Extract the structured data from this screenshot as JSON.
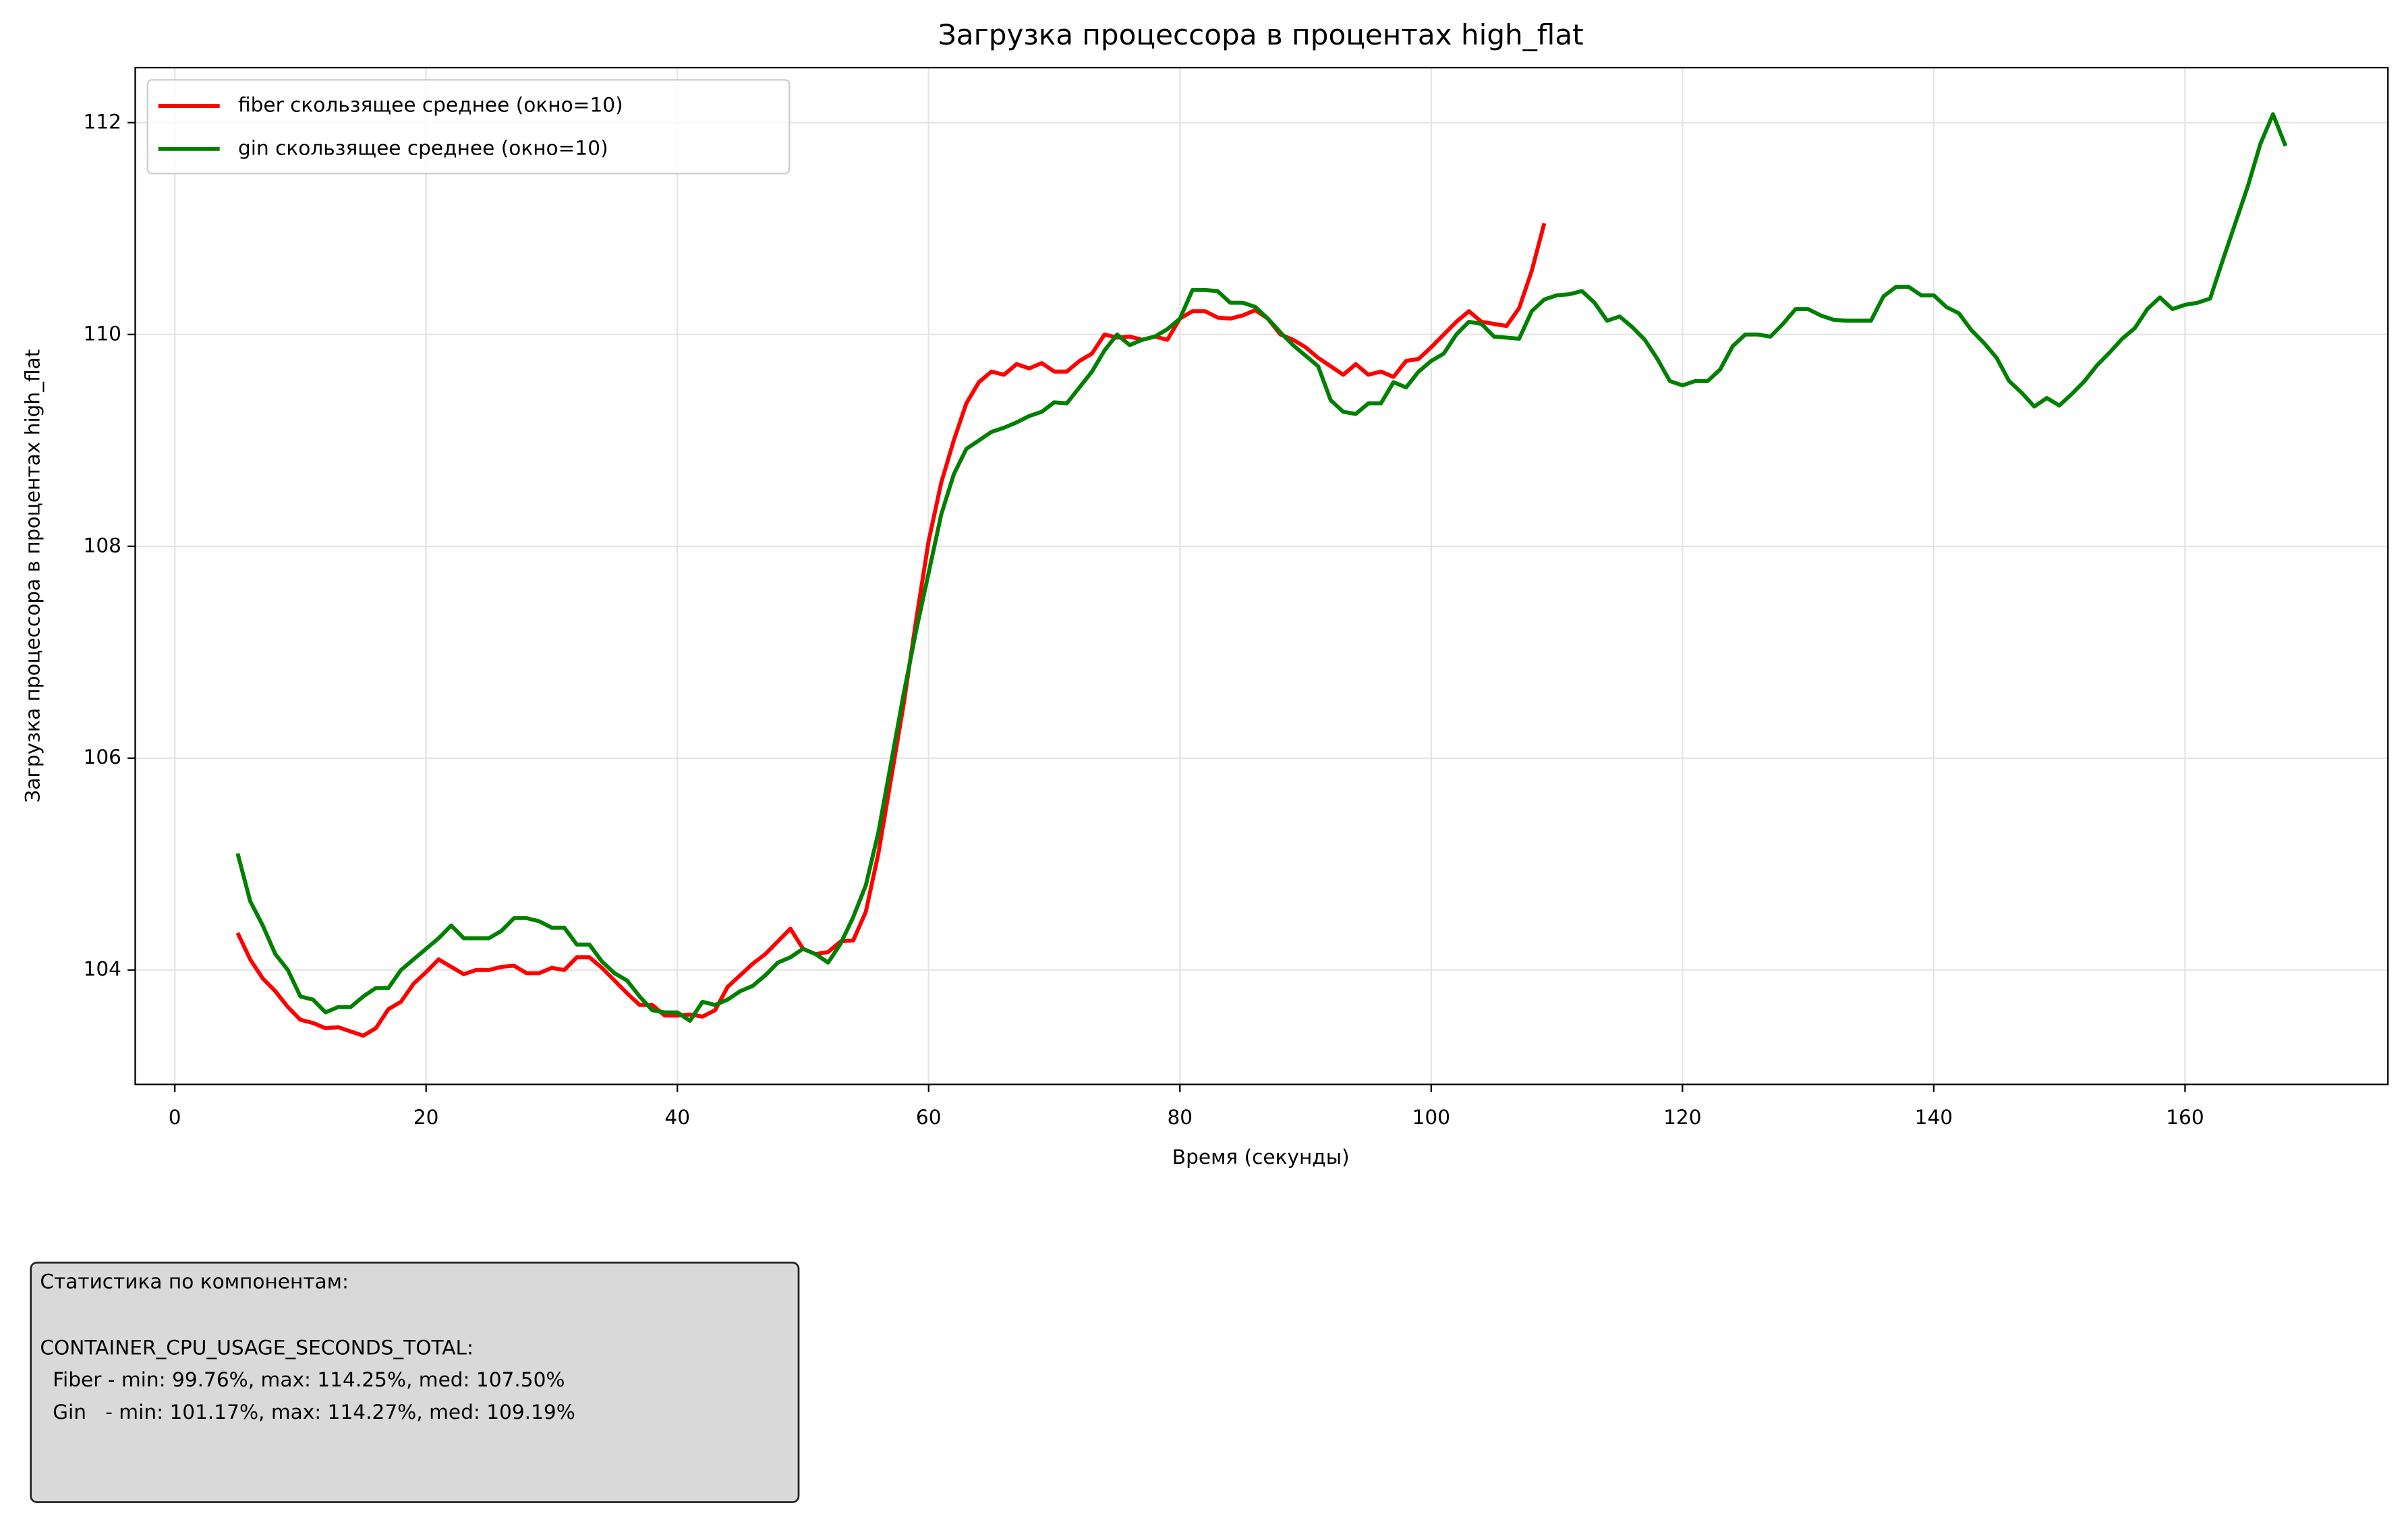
{
  "chart_data": {
    "type": "line",
    "title": "Загрузка процессора в процентах high_flat",
    "x_label": "Время (секунды)",
    "y_label": "Загрузка процессора в процентах high_flat",
    "xlim": [
      -3.15,
      176.15
    ],
    "ylim": [
      102.92,
      112.52
    ],
    "xticks": [
      0,
      20,
      40,
      60,
      80,
      100,
      120,
      140,
      160
    ],
    "yticks": [
      104,
      106,
      108,
      110,
      112
    ],
    "grid": true,
    "legend": "upper left",
    "series": [
      {
        "name": "fiber скользящее среднее (окно=10)",
        "color": "#ff0000",
        "x": [
          5,
          6,
          7,
          8,
          9,
          10,
          11,
          12,
          13,
          14,
          15,
          16,
          17,
          18,
          19,
          20,
          21,
          22,
          23,
          24,
          25,
          26,
          27,
          28,
          29,
          30,
          31,
          32,
          33,
          34,
          35,
          36,
          37,
          38,
          39,
          40,
          41,
          42,
          43,
          44,
          45,
          46,
          47,
          48,
          49,
          50,
          51,
          52,
          53,
          54,
          55,
          56,
          57,
          58,
          59,
          60,
          61,
          62,
          63,
          64,
          65,
          66,
          67,
          68,
          69,
          70,
          71,
          72,
          73,
          74,
          75,
          76,
          77,
          78,
          79,
          80,
          81,
          82,
          83,
          84,
          85,
          86,
          87,
          88,
          89,
          90,
          91,
          92,
          93,
          94,
          95,
          96,
          97,
          98,
          99,
          100,
          101,
          102,
          103,
          104,
          105,
          106,
          107,
          108,
          109
        ],
        "values": [
          104.35,
          104.1,
          103.92,
          103.8,
          103.65,
          103.53,
          103.5,
          103.45,
          103.46,
          103.42,
          103.38,
          103.45,
          103.63,
          103.7,
          103.87,
          103.98,
          104.1,
          104.03,
          103.96,
          104.0,
          104.0,
          104.03,
          104.04,
          103.97,
          103.97,
          104.02,
          104.0,
          104.12,
          104.12,
          104.02,
          103.9,
          103.78,
          103.67,
          103.67,
          103.57,
          103.57,
          103.58,
          103.56,
          103.62,
          103.84,
          103.95,
          104.06,
          104.15,
          104.27,
          104.39,
          104.2,
          104.15,
          104.17,
          104.27,
          104.28,
          104.55,
          105.1,
          105.8,
          106.5,
          107.3,
          108.05,
          108.6,
          109.0,
          109.35,
          109.55,
          109.65,
          109.62,
          109.72,
          109.68,
          109.73,
          109.65,
          109.65,
          109.75,
          109.82,
          110.0,
          109.97,
          109.98,
          109.95,
          109.98,
          109.95,
          110.15,
          110.22,
          110.22,
          110.16,
          110.15,
          110.18,
          110.23,
          110.15,
          110.0,
          109.95,
          109.88,
          109.78,
          109.7,
          109.62,
          109.72,
          109.62,
          109.65,
          109.6,
          109.75,
          109.77,
          109.88,
          110.0,
          110.12,
          110.22,
          110.12,
          110.1,
          110.08,
          110.25,
          110.6,
          111.05
        ]
      },
      {
        "name": "gin скользящее среднее (окно=10)",
        "color": "#008000",
        "x": [
          5,
          6,
          7,
          8,
          9,
          10,
          11,
          12,
          13,
          14,
          15,
          16,
          17,
          18,
          19,
          20,
          21,
          22,
          23,
          24,
          25,
          26,
          27,
          28,
          29,
          30,
          31,
          32,
          33,
          34,
          35,
          36,
          37,
          38,
          39,
          40,
          41,
          42,
          43,
          44,
          45,
          46,
          47,
          48,
          49,
          50,
          51,
          52,
          53,
          54,
          55,
          56,
          57,
          58,
          59,
          60,
          61,
          62,
          63,
          64,
          65,
          66,
          67,
          68,
          69,
          70,
          71,
          72,
          73,
          74,
          75,
          76,
          77,
          78,
          79,
          80,
          81,
          82,
          83,
          84,
          85,
          86,
          87,
          88,
          89,
          90,
          91,
          92,
          93,
          94,
          95,
          96,
          97,
          98,
          99,
          100,
          101,
          102,
          103,
          104,
          105,
          106,
          107,
          108,
          109,
          110,
          111,
          112,
          113,
          114,
          115,
          116,
          117,
          118,
          119,
          120,
          121,
          122,
          123,
          124,
          125,
          126,
          127,
          128,
          129,
          130,
          131,
          132,
          133,
          134,
          135,
          136,
          137,
          138,
          139,
          140,
          141,
          142,
          143,
          144,
          145,
          146,
          147,
          148,
          149,
          150,
          151,
          152,
          153,
          154,
          155,
          156,
          157,
          158,
          159,
          160,
          161,
          162,
          163,
          164,
          165,
          166,
          167,
          168
        ],
        "values": [
          105.1,
          104.65,
          104.42,
          104.15,
          104.0,
          103.75,
          103.72,
          103.6,
          103.65,
          103.65,
          103.75,
          103.83,
          103.83,
          104.0,
          104.1,
          104.2,
          104.3,
          104.42,
          104.3,
          104.3,
          104.3,
          104.37,
          104.49,
          104.49,
          104.46,
          104.4,
          104.4,
          104.24,
          104.24,
          104.08,
          103.97,
          103.9,
          103.75,
          103.62,
          103.6,
          103.6,
          103.52,
          103.7,
          103.67,
          103.72,
          103.8,
          103.85,
          103.95,
          104.07,
          104.12,
          104.2,
          104.15,
          104.07,
          104.25,
          104.5,
          104.8,
          105.3,
          105.95,
          106.6,
          107.2,
          107.75,
          108.3,
          108.68,
          108.92,
          109.0,
          109.08,
          109.12,
          109.17,
          109.23,
          109.27,
          109.36,
          109.35,
          109.5,
          109.65,
          109.85,
          110.0,
          109.9,
          109.95,
          109.98,
          110.05,
          110.15,
          110.42,
          110.42,
          110.41,
          110.3,
          110.3,
          110.26,
          110.15,
          110.02,
          109.9,
          109.8,
          109.7,
          109.38,
          109.27,
          109.25,
          109.35,
          109.35,
          109.55,
          109.5,
          109.65,
          109.75,
          109.82,
          110.0,
          110.12,
          110.1,
          109.98,
          109.97,
          109.96,
          110.22,
          110.33,
          110.37,
          110.38,
          110.41,
          110.3,
          110.13,
          110.17,
          110.07,
          109.95,
          109.77,
          109.56,
          109.52,
          109.56,
          109.56,
          109.67,
          109.89,
          110.0,
          110.0,
          109.98,
          110.1,
          110.24,
          110.24,
          110.18,
          110.14,
          110.13,
          110.13,
          110.13,
          110.36,
          110.45,
          110.45,
          110.37,
          110.37,
          110.26,
          110.2,
          110.04,
          109.92,
          109.78,
          109.56,
          109.45,
          109.32,
          109.4,
          109.33,
          109.44,
          109.56,
          109.71,
          109.83,
          109.96,
          110.06,
          110.24,
          110.35,
          110.24,
          110.28,
          110.3,
          110.34,
          110.7,
          111.05,
          111.4,
          111.8,
          112.08,
          111.78
        ]
      }
    ]
  },
  "stats_box": {
    "lines": [
      "Статистика по компонентам:",
      "CONTAINER_CPU_USAGE_SECONDS_TOTAL:",
      "  Fiber - min: 99.76%, max: 114.25%, med: 107.50%",
      "  Gin   - min: 101.17%, max: 114.27%, med: 109.19%"
    ]
  }
}
